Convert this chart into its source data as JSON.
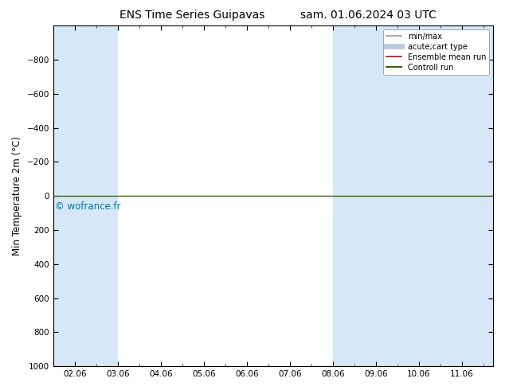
{
  "title": "ENS Time Series Guipavas",
  "title2": "sam. 01.06.2024 03 UTC",
  "ylabel": "Min Temperature 2m (°C)",
  "yticks": [
    -800,
    -600,
    -400,
    -200,
    0,
    200,
    400,
    600,
    800,
    1000
  ],
  "xtick_labels": [
    "02.06",
    "03.06",
    "04.06",
    "05.06",
    "06.06",
    "07.06",
    "08.06",
    "09.06",
    "10.06",
    "11.06"
  ],
  "bg_color": "#ffffff",
  "plot_bg_color": "#ffffff",
  "band_color": "#d6e8f7",
  "bands": [
    [
      0.5,
      1.0
    ],
    [
      1.0,
      2.0
    ],
    [
      7.0,
      8.0
    ],
    [
      8.0,
      9.5
    ],
    [
      9.5,
      10.7
    ]
  ],
  "green_line_color": "#336600",
  "red_line_color": "#cc0000",
  "watermark": "© wofrance.fr",
  "watermark_color": "#0077aa",
  "legend_items": [
    {
      "label": "min/max",
      "color": "#999999",
      "lw": 1.2
    },
    {
      "label": "acute;cart type",
      "color": "#bbccdd",
      "lw": 5
    },
    {
      "label": "Ensemble mean run",
      "color": "#cc0000",
      "lw": 1.2
    },
    {
      "label": "Controll run",
      "color": "#336600",
      "lw": 1.5
    }
  ],
  "figsize": [
    6.34,
    4.9
  ],
  "dpi": 100,
  "xlim_left": 0.5,
  "xlim_right": 10.72,
  "ylim_top": -1000,
  "ylim_bottom": 1000
}
